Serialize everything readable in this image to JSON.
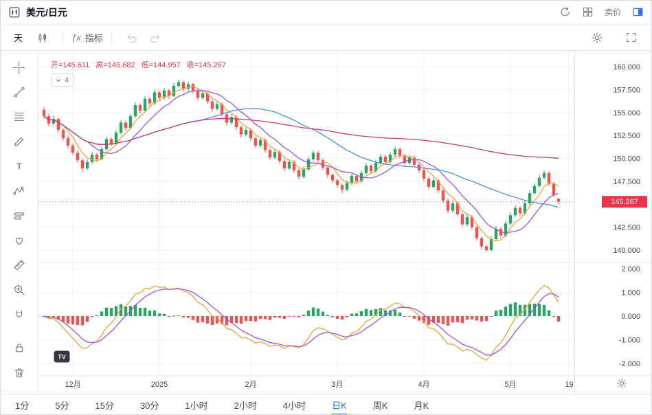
{
  "topbar": {
    "title": "美元/日元",
    "sell_label": "卖价"
  },
  "toolbar": {
    "interval": "天",
    "fx": "ƒx",
    "indicator": "指标"
  },
  "legend": {
    "o": "开=145.611",
    "h": "高=145.682",
    "l": "低=144.957",
    "c": "收=145.267"
  },
  "ma_chip": {
    "count": "4"
  },
  "branding": {
    "logo": "TV"
  },
  "timeframes": {
    "items": [
      "1分",
      "5分",
      "15分",
      "30分",
      "1小时",
      "2小时",
      "4小时",
      "日K",
      "周K",
      "月K"
    ],
    "active": "日K"
  },
  "colors": {
    "up": "#2ca264",
    "down": "#ef5350",
    "grid": "#eef0f5",
    "divider": "#e3e5ea",
    "axis_text": "#42464e",
    "badge": "#e8374a",
    "price_line": "#c96d6d"
  },
  "chart_data": {
    "type": "candlestick",
    "symbol": "美元/日元",
    "interval": "日K",
    "legend_ohlc": {
      "open": 145.611,
      "high": 145.682,
      "low": 144.957,
      "close": 145.267
    },
    "last_price": 145.267,
    "last_price_label": "145.267",
    "price_axis": {
      "min": 140,
      "max": 160,
      "ticks": [
        160,
        157.5,
        155,
        152.5,
        150,
        147.5,
        145,
        142.5,
        140
      ],
      "labels": [
        "160.000",
        "157.500",
        "155.000",
        "152.500",
        "150.000",
        "147.500",
        "145.000",
        "142.500",
        "140.000"
      ]
    },
    "macd_pane": {
      "min": -2,
      "max": 2,
      "ticks": [
        2,
        1,
        0,
        -1,
        -2
      ],
      "labels": [
        "2.000",
        "1.000",
        "0.000",
        "-1.000",
        "-2.000"
      ]
    },
    "time_axis": {
      "ticks": [
        {
          "label": "12月",
          "i": 6
        },
        {
          "label": "2025",
          "i": 24
        },
        {
          "label": "2月",
          "i": 43
        },
        {
          "label": "3月",
          "i": 61
        },
        {
          "label": "4月",
          "i": 79
        },
        {
          "label": "5月",
          "i": 97
        },
        {
          "label": "19",
          "i": 109.2
        }
      ]
    },
    "ma": [
      {
        "period": 5,
        "color": "#f0a33c"
      },
      {
        "period": 10,
        "color": "#9b59c8"
      },
      {
        "period": 30,
        "color": "#4a90d9"
      },
      {
        "period": 120,
        "color": "#c2406e"
      }
    ],
    "macd": {
      "fast": 6,
      "slow": 13,
      "signal": 5,
      "dif_color": "#e8a33d",
      "dea_color": "#9b59c8"
    },
    "candles": [
      [
        155.3,
        155.6,
        154.3,
        154.6
      ],
      [
        154.6,
        154.9,
        153.5,
        153.8
      ],
      [
        153.8,
        154.7,
        153.6,
        154.3
      ],
      [
        154.3,
        154.5,
        152.8,
        153.1
      ],
      [
        153.1,
        153.3,
        151.9,
        152.2
      ],
      [
        152.2,
        152.5,
        151.1,
        151.4
      ],
      [
        151.4,
        151.6,
        150.3,
        150.6
      ],
      [
        150.6,
        150.9,
        149.5,
        149.8
      ],
      [
        149.8,
        150.0,
        148.5,
        148.9
      ],
      [
        148.9,
        149.9,
        148.7,
        149.6
      ],
      [
        149.6,
        150.7,
        149.4,
        150.4
      ],
      [
        150.4,
        150.6,
        149.6,
        149.9
      ],
      [
        149.9,
        151.3,
        149.8,
        151.0
      ],
      [
        151.0,
        152.4,
        150.8,
        152.1
      ],
      [
        152.1,
        152.3,
        151.3,
        151.6
      ],
      [
        151.6,
        153.1,
        151.4,
        152.8
      ],
      [
        152.8,
        154.2,
        152.6,
        153.9
      ],
      [
        153.9,
        154.1,
        153.0,
        153.3
      ],
      [
        153.3,
        154.9,
        153.2,
        154.6
      ],
      [
        154.6,
        156.1,
        154.4,
        155.8
      ],
      [
        155.8,
        156.0,
        154.9,
        155.2
      ],
      [
        155.2,
        156.8,
        155.0,
        156.5
      ],
      [
        156.5,
        156.7,
        155.7,
        156.0
      ],
      [
        156.0,
        157.5,
        155.8,
        157.2
      ],
      [
        157.2,
        157.4,
        156.3,
        156.6
      ],
      [
        156.6,
        157.7,
        156.4,
        157.4
      ],
      [
        157.4,
        157.6,
        156.5,
        156.8
      ],
      [
        156.8,
        158.2,
        156.7,
        157.9
      ],
      [
        157.9,
        158.6,
        157.7,
        158.3
      ],
      [
        158.3,
        158.5,
        157.3,
        157.6
      ],
      [
        157.6,
        158.4,
        157.4,
        158.1
      ],
      [
        158.1,
        158.3,
        157.1,
        157.4
      ],
      [
        157.4,
        157.6,
        156.3,
        156.6
      ],
      [
        156.6,
        157.4,
        156.4,
        157.1
      ],
      [
        157.1,
        157.3,
        155.9,
        156.2
      ],
      [
        156.2,
        156.4,
        155.1,
        155.4
      ],
      [
        155.4,
        156.2,
        155.2,
        155.9
      ],
      [
        155.9,
        156.1,
        154.5,
        154.8
      ],
      [
        154.8,
        155.0,
        153.6,
        153.9
      ],
      [
        153.9,
        154.8,
        153.7,
        154.5
      ],
      [
        154.5,
        154.7,
        153.1,
        153.4
      ],
      [
        153.4,
        153.6,
        152.3,
        152.6
      ],
      [
        152.6,
        153.4,
        152.4,
        153.1
      ],
      [
        153.1,
        153.3,
        151.9,
        152.2
      ],
      [
        152.2,
        152.4,
        151.1,
        151.4
      ],
      [
        151.4,
        152.3,
        151.2,
        152.0
      ],
      [
        152.0,
        152.2,
        150.6,
        150.9
      ],
      [
        150.9,
        151.1,
        149.8,
        150.1
      ],
      [
        150.1,
        151.0,
        149.9,
        150.7
      ],
      [
        150.7,
        150.9,
        149.4,
        149.7
      ],
      [
        149.7,
        149.9,
        148.6,
        148.9
      ],
      [
        148.9,
        149.9,
        148.7,
        149.6
      ],
      [
        149.6,
        149.8,
        148.4,
        148.7
      ],
      [
        148.7,
        148.9,
        147.7,
        148.0
      ],
      [
        148.0,
        149.1,
        147.8,
        148.8
      ],
      [
        148.8,
        150.2,
        148.6,
        149.9
      ],
      [
        149.9,
        150.9,
        149.7,
        150.6
      ],
      [
        150.6,
        150.8,
        149.5,
        149.8
      ],
      [
        149.8,
        150.0,
        148.7,
        149.0
      ],
      [
        149.0,
        149.2,
        147.9,
        148.2
      ],
      [
        148.2,
        148.4,
        147.3,
        147.6
      ],
      [
        147.6,
        147.8,
        146.8,
        147.1
      ],
      [
        147.1,
        147.3,
        146.2,
        146.6
      ],
      [
        146.6,
        147.6,
        146.4,
        147.3
      ],
      [
        147.3,
        148.4,
        147.1,
        148.1
      ],
      [
        148.1,
        148.3,
        147.2,
        147.5
      ],
      [
        147.5,
        148.7,
        147.3,
        148.4
      ],
      [
        148.4,
        149.5,
        148.2,
        149.2
      ],
      [
        149.2,
        149.4,
        148.3,
        148.6
      ],
      [
        148.6,
        149.8,
        148.4,
        149.5
      ],
      [
        149.5,
        150.5,
        149.3,
        150.2
      ],
      [
        150.2,
        150.4,
        149.3,
        149.6
      ],
      [
        149.6,
        150.7,
        149.4,
        150.4
      ],
      [
        150.4,
        151.3,
        150.2,
        151.0
      ],
      [
        151.0,
        151.2,
        150.0,
        150.3
      ],
      [
        150.3,
        150.5,
        149.2,
        149.5
      ],
      [
        149.5,
        150.4,
        149.3,
        150.1
      ],
      [
        150.1,
        150.3,
        149.0,
        149.3
      ],
      [
        149.3,
        149.5,
        148.4,
        148.7
      ],
      [
        148.7,
        148.9,
        147.5,
        147.8
      ],
      [
        147.8,
        148.0,
        146.6,
        146.9
      ],
      [
        146.9,
        147.9,
        146.7,
        147.6
      ],
      [
        147.6,
        147.8,
        146.2,
        146.5
      ],
      [
        146.5,
        146.7,
        145.1,
        145.4
      ],
      [
        145.4,
        145.6,
        144.0,
        144.3
      ],
      [
        144.3,
        145.4,
        144.1,
        145.1
      ],
      [
        145.1,
        145.3,
        143.6,
        143.9
      ],
      [
        143.9,
        144.1,
        142.5,
        142.8
      ],
      [
        142.8,
        143.9,
        142.6,
        143.6
      ],
      [
        143.6,
        143.8,
        142.2,
        142.5
      ],
      [
        142.5,
        142.7,
        141.0,
        141.3
      ],
      [
        141.3,
        141.5,
        140.1,
        140.4
      ],
      [
        140.4,
        140.6,
        139.8,
        140.0
      ],
      [
        140.0,
        141.5,
        139.9,
        141.2
      ],
      [
        141.2,
        142.6,
        141.0,
        142.3
      ],
      [
        142.3,
        142.5,
        141.3,
        141.6
      ],
      [
        141.6,
        143.2,
        141.4,
        142.9
      ],
      [
        142.9,
        144.1,
        142.7,
        143.8
      ],
      [
        143.8,
        144.9,
        143.6,
        144.6
      ],
      [
        144.6,
        144.8,
        143.7,
        144.0
      ],
      [
        144.0,
        145.4,
        143.8,
        145.1
      ],
      [
        145.1,
        146.5,
        144.9,
        146.2
      ],
      [
        146.2,
        147.3,
        146.0,
        147.0
      ],
      [
        147.0,
        148.2,
        146.8,
        147.9
      ],
      [
        147.9,
        148.7,
        147.7,
        148.4
      ],
      [
        148.4,
        148.6,
        147.0,
        147.2
      ],
      [
        147.2,
        147.4,
        145.8,
        146.0
      ],
      [
        145.611,
        145.682,
        144.957,
        145.267
      ]
    ]
  }
}
